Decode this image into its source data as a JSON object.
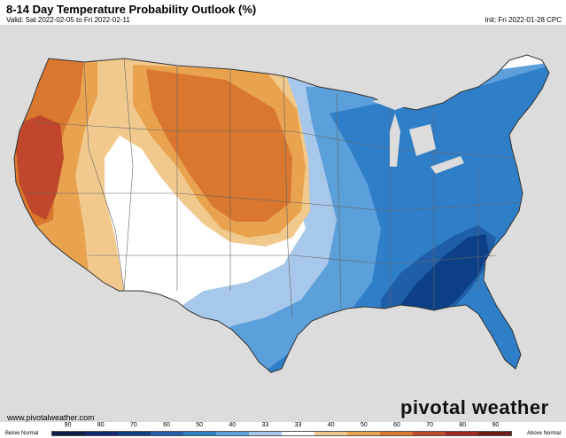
{
  "header": {
    "title": "8-14 Day Temperature Probability Outlook (%)",
    "valid": "Valid: Sat 2022-02-05 to Fri 2022-02-11",
    "init": "Init: Fri 2022-01-28 CPC"
  },
  "footer": {
    "url": "www.pivotalweather.com",
    "brand": "pivotal weather"
  },
  "legend": {
    "below_label": "Below Normal",
    "above_label": "Above Normal",
    "labels": [
      "90",
      "80",
      "70",
      "60",
      "50",
      "40",
      "33",
      "33",
      "40",
      "50",
      "60",
      "70",
      "80",
      "90"
    ],
    "colors": [
      "#0b1a4a",
      "#10276e",
      "#0c3f86",
      "#1f5fa8",
      "#2f7ec8",
      "#5b9fdb",
      "#a7c8ea",
      "#ffffff",
      "#f2c98c",
      "#e9a24e",
      "#d9772e",
      "#c0472b",
      "#9e2a24",
      "#6e1c18"
    ]
  },
  "map": {
    "colors": {
      "land": "#ffffff",
      "ocean": "#dcdcdc",
      "below33": "#a7c8ea",
      "below40": "#5b9fdb",
      "below50": "#2f7ec8",
      "below60": "#1f5fa8",
      "below70": "#0c3f86",
      "above33": "#f2c98c",
      "above40": "#e9a24e",
      "above50": "#d9772e",
      "above60": "#c0472b"
    }
  }
}
